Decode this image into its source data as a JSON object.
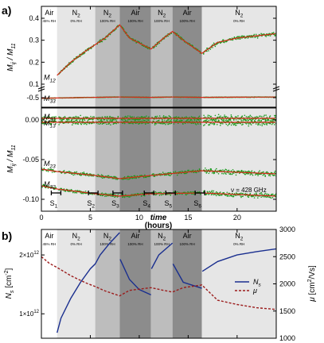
{
  "panel_labels": [
    "a)",
    "b)"
  ],
  "x_axis": {
    "label": "time",
    "unit_label": "(hours)",
    "range": [
      0,
      24
    ],
    "ticks": [
      0,
      5,
      10,
      15,
      20
    ],
    "tick_labels": [
      "0",
      "5",
      "10",
      "15",
      "20"
    ]
  },
  "regions": [
    {
      "start": 0.0,
      "end": 1.6,
      "gas": "Air",
      "rh": "45% RH",
      "shade": "#ffffff"
    },
    {
      "start": 1.6,
      "end": 5.5,
      "gas": "N",
      "gas_sub": "2",
      "rh": "0% RH",
      "shade": "#e6e6e6"
    },
    {
      "start": 5.5,
      "end": 8.0,
      "gas": "N",
      "gas_sub": "2",
      "rh": "100% RH",
      "shade": "#bdbdbd"
    },
    {
      "start": 8.0,
      "end": 11.2,
      "gas": "Air",
      "rh": "100% RH",
      "shade": "#8c8c8c"
    },
    {
      "start": 11.2,
      "end": 13.4,
      "gas": "N",
      "gas_sub": "2",
      "rh": "100% RH",
      "shade": "#bdbdbd"
    },
    {
      "start": 13.4,
      "end": 16.4,
      "gas": "Air",
      "rh": "100% RH",
      "shade": "#8c8c8c"
    },
    {
      "start": 16.4,
      "end": 24.0,
      "gas": "N",
      "gas_sub": "2",
      "rh": "0% RH",
      "shade": "#e6e6e6"
    }
  ],
  "s_markers": [
    {
      "x": 1.5,
      "label": "S",
      "sub": "1"
    },
    {
      "x": 5.3,
      "label": "S",
      "sub": "2"
    },
    {
      "x": 7.8,
      "label": "S",
      "sub": "3"
    },
    {
      "x": 11.0,
      "label": "S",
      "sub": "4"
    },
    {
      "x": 13.2,
      "label": "S",
      "sub": "5"
    },
    {
      "x": 16.2,
      "label": "S",
      "sub": "6"
    }
  ],
  "frequency_label": "ν = 428 GHz",
  "chart_data": [
    {
      "type": "scatter",
      "panel": "a) upper",
      "ylabel": "Mij / M11",
      "ylabel_parts": {
        "main": "M",
        "sub1": "ij",
        "sep": " / M",
        "sub2": "11"
      },
      "yticks": [
        -0.5,
        0.1,
        0.2,
        0.3,
        0.4
      ],
      "ytick_labels": [
        "-0.5",
        "0.1",
        "0.2",
        "0.3",
        "0.4"
      ],
      "broken_axis": true,
      "series": [
        {
          "name": "M12",
          "label_main": "M",
          "label_sub": "12",
          "color_data": "#1f8a1f",
          "color_fit": "#d9281a",
          "x": [
            1.6,
            3.0,
            4.5,
            5.5,
            6.5,
            8.0,
            9.0,
            11.2,
            12.5,
            13.4,
            14.5,
            16.4,
            18,
            20,
            22,
            24
          ],
          "y": [
            0.14,
            0.2,
            0.25,
            0.28,
            0.31,
            0.37,
            0.31,
            0.26,
            0.31,
            0.34,
            0.3,
            0.24,
            0.29,
            0.31,
            0.32,
            0.33
          ]
        },
        {
          "name": "M33",
          "label_main": "M",
          "label_sub": "33",
          "color_data": "#1f8a1f",
          "color_fit": "#d9281a",
          "x": [
            0,
            1.6,
            5.5,
            8.0,
            11.2,
            13.4,
            16.4,
            24
          ],
          "y": [
            -0.52,
            -0.51,
            -0.49,
            -0.48,
            -0.49,
            -0.48,
            -0.49,
            -0.48
          ]
        }
      ]
    },
    {
      "type": "scatter",
      "panel": "a) lower",
      "ylabel": "Mij / M11",
      "ylabel_parts": {
        "main": "M",
        "sub1": "ij",
        "sep": " / M",
        "sub2": "11"
      },
      "ylim": [
        -0.115,
        0.015
      ],
      "yticks": [
        0.0,
        -0.05,
        -0.1
      ],
      "ytick_labels": [
        "0.00",
        "-0.05",
        "-0.10"
      ],
      "series": [
        {
          "name": "M31",
          "label_main": "M",
          "label_sub": "31",
          "x": [
            0,
            24
          ],
          "y": [
            0.002,
            0.002
          ]
        },
        {
          "name": "M13",
          "label_main": "M",
          "label_sub": "13",
          "x": [
            0,
            24
          ],
          "y": [
            -0.003,
            -0.003
          ]
        },
        {
          "name": "M23",
          "label_main": "M",
          "label_sub": "23",
          "x": [
            0,
            1.6,
            5.5,
            8.0,
            11.2,
            16.4,
            24
          ],
          "y": [
            -0.062,
            -0.065,
            -0.07,
            -0.074,
            -0.07,
            -0.064,
            -0.068
          ]
        },
        {
          "name": "M32",
          "label_main": "M",
          "label_sub": "32",
          "x": [
            0,
            1.6,
            5.5,
            8.0,
            11.2,
            16.4,
            24
          ],
          "y": [
            -0.083,
            -0.087,
            -0.093,
            -0.096,
            -0.093,
            -0.092,
            -0.096
          ]
        }
      ]
    },
    {
      "type": "line",
      "panel": "b)",
      "ylabel_left_parts": {
        "main": "N",
        "sub": "s",
        "unit": " [cm",
        "sup": "-2",
        "close": "]"
      },
      "ylabel_right_parts": {
        "main": "μ",
        "unit": " [cm",
        "sup": "2",
        "close": "/Vs]"
      },
      "ylim_left_log": [
        750000000000.0,
        2700000000000.0
      ],
      "yticks_left": [
        1000000000000.0,
        2000000000000.0
      ],
      "ytick_labels_left": [
        {
          "base": "1×10",
          "exp": "12"
        },
        {
          "base": "2×10",
          "exp": "12"
        }
      ],
      "ylim_right": [
        1000,
        3000
      ],
      "yticks_right": [
        1000,
        1500,
        2000,
        2500,
        3000
      ],
      "ytick_labels_right": [
        "1000",
        "1500",
        "2000",
        "2500",
        "3000"
      ],
      "legend": {
        "placement": "right-middle",
        "entries": [
          {
            "main": "N",
            "sub": "s",
            "style": "solid",
            "color": "#1a2f8f"
          },
          {
            "main": "μ",
            "sub": "",
            "style": "dashed",
            "color": "#9b1c1c"
          }
        ]
      },
      "series": [
        {
          "name": "Ns",
          "axis": "left",
          "color": "#1a2f8f",
          "x": [
            1.6,
            2.0,
            3.0,
            4.0,
            5.0,
            5.5,
            6.0,
            7.0,
            8.0,
            8.05,
            9.0,
            10.0,
            11.2,
            11.25,
            12.0,
            13.4,
            13.45,
            14.5,
            16.4,
            16.45,
            18.0,
            20.0,
            22.0,
            24.0
          ],
          "y": [
            800000000000.0,
            950000000000.0,
            1200000000000.0,
            1450000000000.0,
            1700000000000.0,
            1800000000000.0,
            2000000000000.0,
            2300000000000.0,
            2600000000000.0,
            1900000000000.0,
            1500000000000.0,
            1330000000000.0,
            1250000000000.0,
            1700000000000.0,
            2000000000000.0,
            2300000000000.0,
            1800000000000.0,
            1450000000000.0,
            1350000000000.0,
            1650000000000.0,
            1850000000000.0,
            2000000000000.0,
            2080000000000.0,
            2150000000000.0
          ]
        },
        {
          "name": "μ",
          "axis": "right",
          "color": "#9b1c1c",
          "x": [
            0.0,
            0.8,
            1.6,
            3.0,
            4.5,
            5.5,
            6.5,
            8.0,
            9.0,
            11.2,
            12.5,
            13.4,
            14.5,
            16.4,
            18.0,
            20.0,
            22.0,
            24.0
          ],
          "y": [
            2500,
            2380,
            2300,
            2150,
            2020,
            1950,
            1870,
            1780,
            1880,
            1930,
            1880,
            1850,
            1930,
            1980,
            1700,
            1620,
            1560,
            1530
          ]
        }
      ]
    }
  ]
}
